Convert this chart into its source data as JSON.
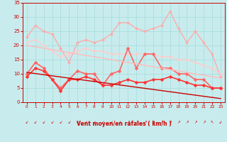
{
  "xlabel": "Vent moyen/en rafales ( km/h )",
  "xlim": [
    -0.5,
    23.5
  ],
  "ylim": [
    0,
    35
  ],
  "yticks": [
    0,
    5,
    10,
    15,
    20,
    25,
    30,
    35
  ],
  "xticks": [
    0,
    1,
    2,
    3,
    4,
    5,
    6,
    7,
    8,
    9,
    10,
    11,
    12,
    13,
    14,
    15,
    16,
    17,
    18,
    19,
    20,
    21,
    22,
    23
  ],
  "background_color": "#c8eced",
  "grid_color": "#aadddd",
  "series": [
    {
      "name": "gust_top",
      "color": "#ffaaaa",
      "linewidth": 1.0,
      "marker": "D",
      "markersize": 2.0,
      "values": [
        23,
        27,
        25,
        24,
        19,
        14,
        21,
        22,
        21,
        22,
        24,
        28,
        28,
        26,
        25,
        26,
        27,
        32,
        26,
        21,
        25,
        21,
        17,
        9
      ]
    },
    {
      "name": "gust_trend",
      "color": "#ffcccc",
      "linewidth": 1.0,
      "marker": "D",
      "markersize": 2.0,
      "values": [
        21,
        22,
        20,
        18,
        16,
        17,
        18,
        19,
        18,
        18,
        17,
        17,
        17,
        17,
        17,
        17,
        16,
        16,
        15,
        15,
        14,
        13,
        12,
        10
      ]
    },
    {
      "name": "mean_top",
      "color": "#ff6666",
      "linewidth": 1.2,
      "marker": "D",
      "markersize": 2.5,
      "values": [
        10,
        14,
        12,
        8,
        5,
        8,
        11,
        10,
        10,
        6,
        10,
        11,
        19,
        12,
        17,
        17,
        12,
        12,
        10,
        10,
        8,
        8,
        5,
        5
      ]
    },
    {
      "name": "mean_mid",
      "color": "#ff3333",
      "linewidth": 1.2,
      "marker": "D",
      "markersize": 2.5,
      "values": [
        9,
        12,
        11,
        8,
        4,
        8,
        8,
        9,
        8,
        6,
        6,
        7,
        8,
        7,
        7,
        8,
        8,
        9,
        8,
        7,
        6,
        6,
        5,
        5
      ]
    },
    {
      "name": "trend_high",
      "color": "#ffbbbb",
      "linewidth": 1.0,
      "marker": null,
      "values": [
        20,
        19.5,
        19,
        18.5,
        18,
        17.5,
        17,
        16.5,
        16,
        15.5,
        15,
        14.5,
        14,
        13.5,
        13,
        12.5,
        12,
        11.5,
        11,
        10.5,
        10,
        9.5,
        9,
        8.5
      ]
    },
    {
      "name": "trend_mean",
      "color": "#cc0000",
      "linewidth": 1.0,
      "marker": null,
      "values": [
        10.5,
        10.1,
        9.7,
        9.3,
        8.9,
        8.5,
        8.1,
        7.7,
        7.3,
        6.9,
        6.5,
        6.1,
        5.7,
        5.3,
        4.9,
        4.5,
        4.1,
        3.7,
        3.3,
        2.9,
        2.5,
        2.1,
        1.7,
        1.3
      ]
    }
  ],
  "wind_arrows": [
    225,
    225,
    225,
    270,
    225,
    225,
    225,
    225,
    225,
    225,
    270,
    270,
    45,
    45,
    45,
    45,
    45,
    45,
    45,
    45,
    45,
    45,
    315,
    225
  ]
}
